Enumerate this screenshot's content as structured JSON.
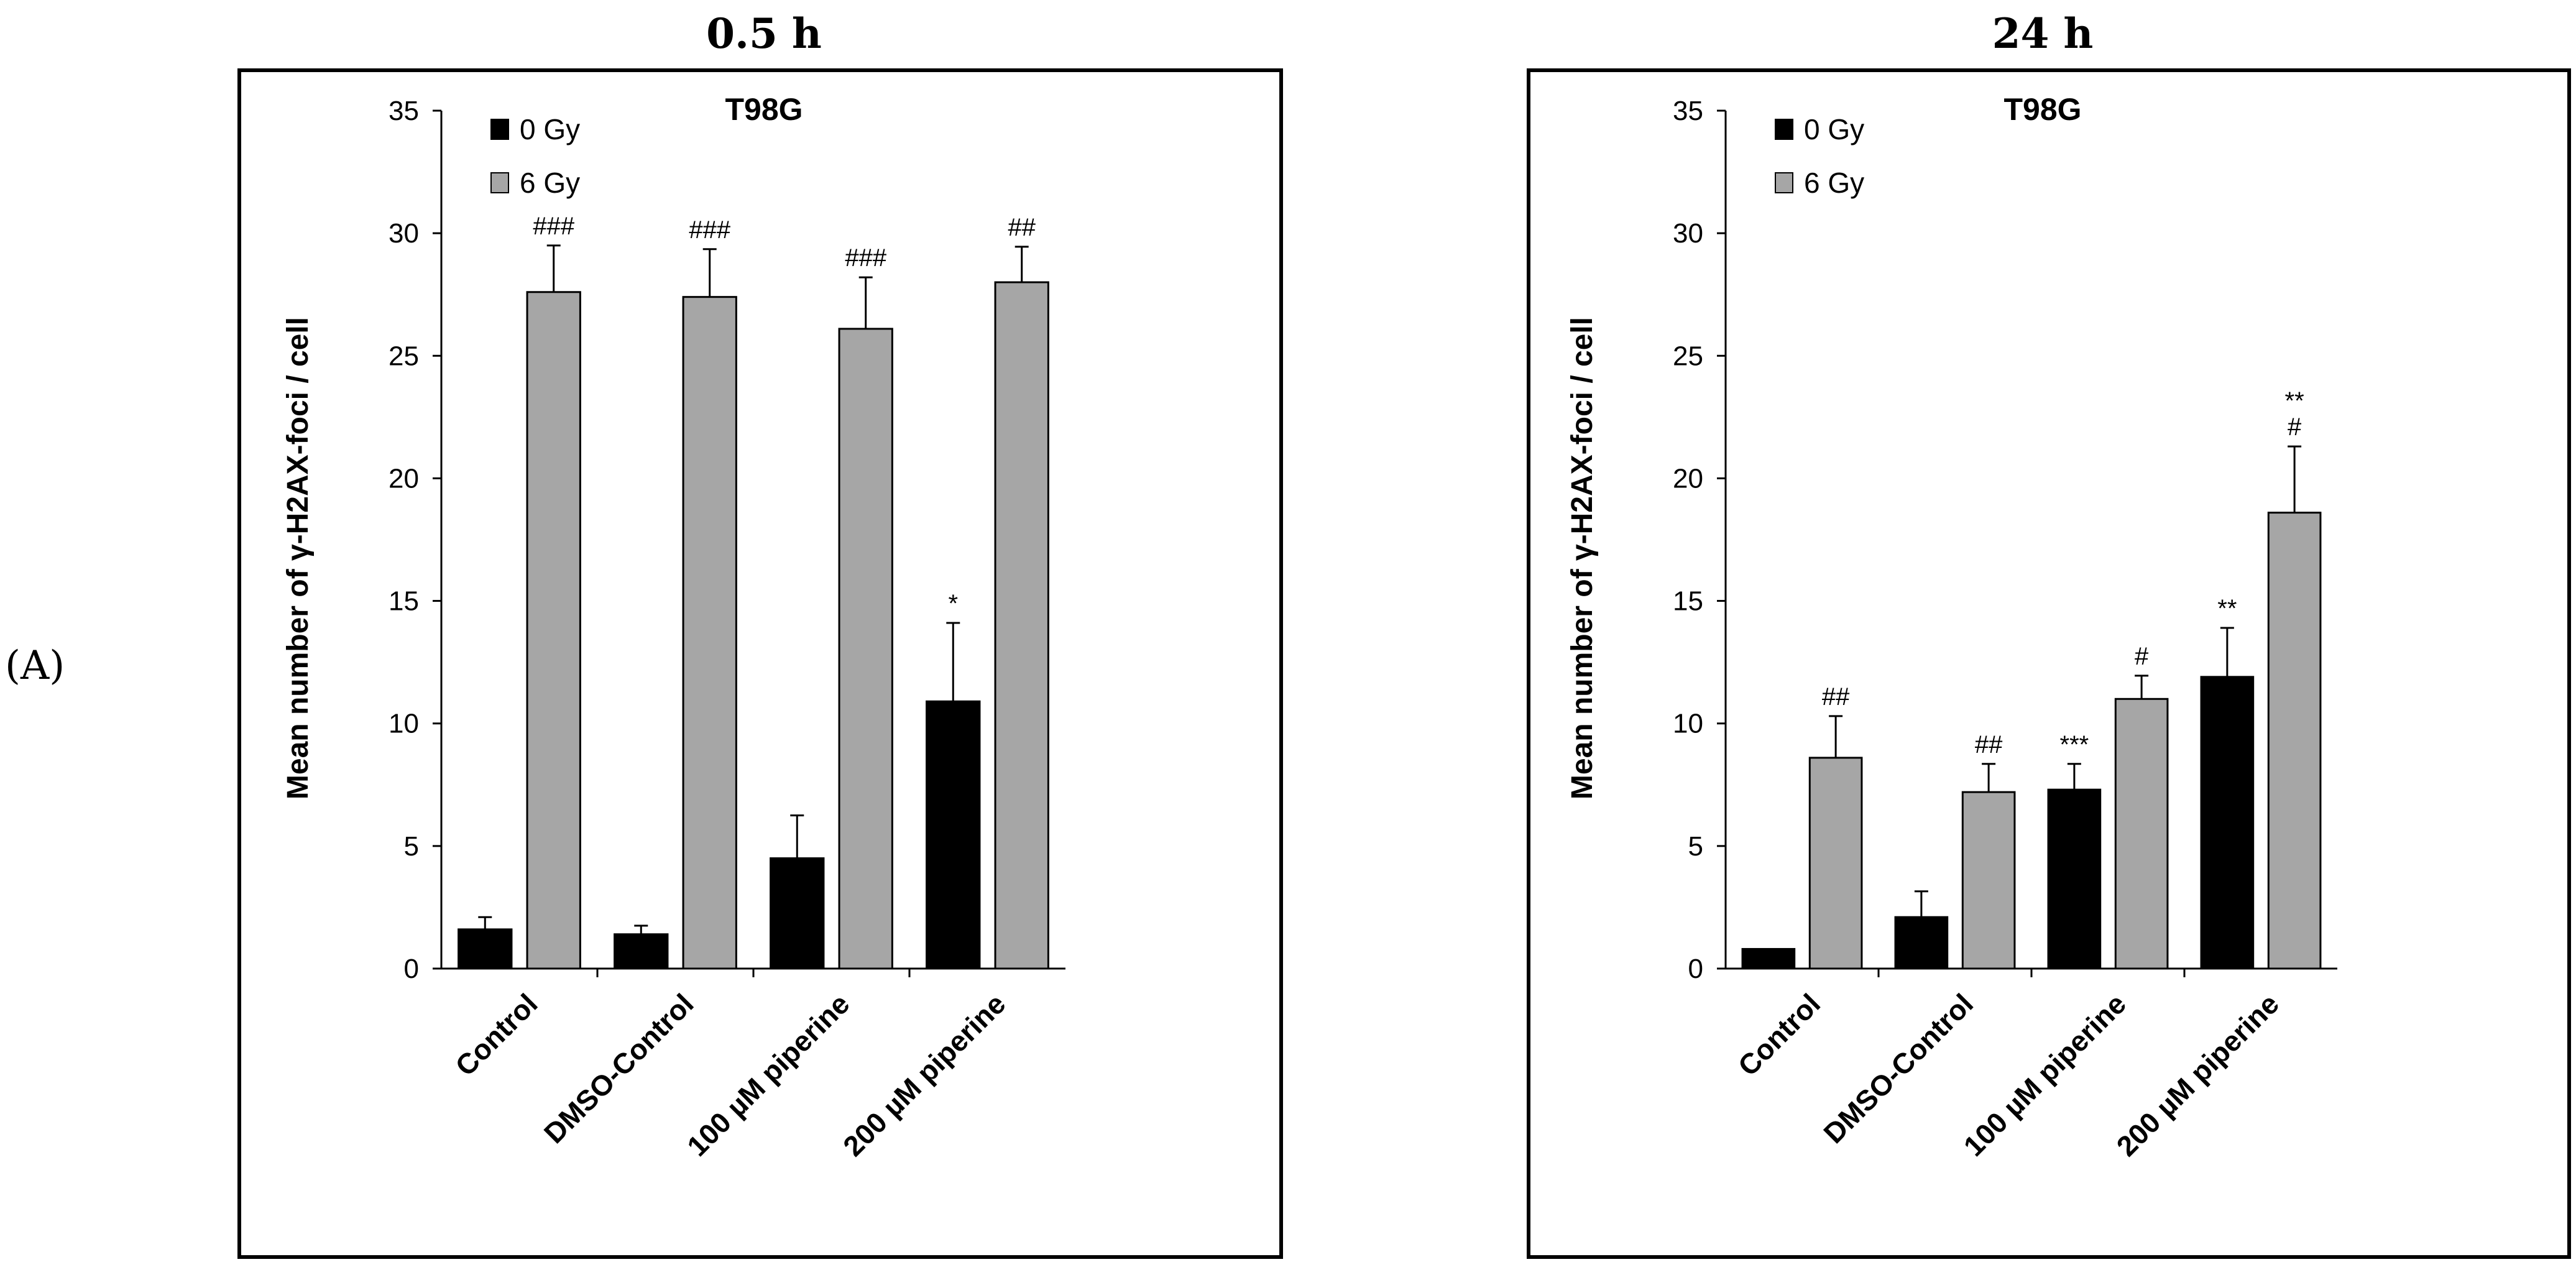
{
  "panel_label": "(A)",
  "chart_data": [
    {
      "type": "bar",
      "title": "0.5 h",
      "subtitle": "T98G",
      "xlabel": "",
      "ylabel": "Mean number of γ-H2AX-foci / cell",
      "ylim": [
        0,
        35
      ],
      "yticks": [
        0,
        5,
        10,
        15,
        20,
        25,
        30,
        35
      ],
      "categories": [
        "Control",
        "DMSO-Control",
        "100 µM piperine",
        "200 µM piperine"
      ],
      "series": [
        {
          "name": "0 Gy",
          "color": "#000000",
          "values": [
            1.6,
            1.4,
            4.5,
            10.9
          ],
          "errors": [
            0.5,
            0.35,
            1.75,
            3.2
          ],
          "annotations": [
            "",
            "",
            "",
            "*"
          ]
        },
        {
          "name": "6 Gy",
          "color": "#a6a6a6",
          "values": [
            27.6,
            27.4,
            26.1,
            28.0
          ],
          "errors": [
            1.9,
            1.95,
            2.1,
            1.45
          ],
          "annotations": [
            "###",
            "###",
            "###",
            "##"
          ]
        }
      ],
      "legend": "top-left"
    },
    {
      "type": "bar",
      "title": "24 h",
      "subtitle": "T98G",
      "xlabel": "",
      "ylabel": "Mean number of γ-H2AX-foci / cell",
      "ylim": [
        0,
        35
      ],
      "yticks": [
        0,
        5,
        10,
        15,
        20,
        25,
        30,
        35
      ],
      "categories": [
        "Control",
        "DMSO-Control",
        "100 µM piperine",
        "200 µM piperine"
      ],
      "series": [
        {
          "name": "0 Gy",
          "color": "#000000",
          "values": [
            0.8,
            2.1,
            7.3,
            11.9
          ],
          "errors": [
            0,
            1.05,
            1.05,
            2.0
          ],
          "annotations": [
            "",
            "",
            "***",
            "**"
          ]
        },
        {
          "name": "6 Gy",
          "color": "#a6a6a6",
          "values": [
            8.6,
            7.2,
            11.0,
            18.6
          ],
          "errors": [
            1.7,
            1.15,
            0.95,
            2.7
          ],
          "annotations": [
            "##",
            "##",
            "#",
            "**\n#"
          ]
        }
      ],
      "legend": "top-left"
    }
  ]
}
